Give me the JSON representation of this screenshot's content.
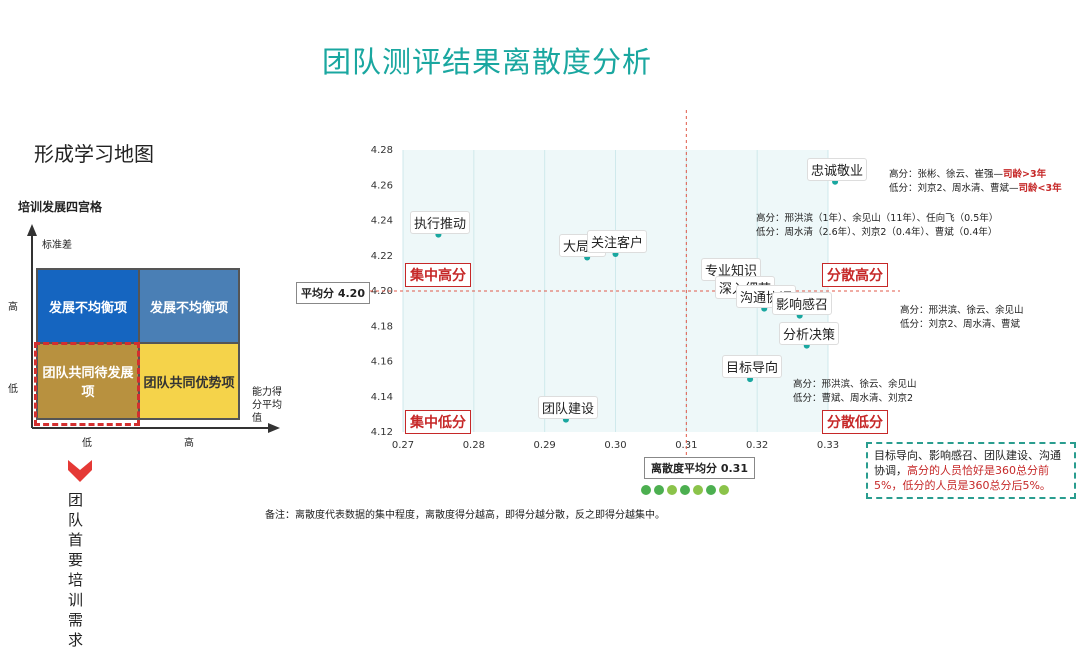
{
  "page": {
    "title": "团队测评结果离散度分析",
    "subtitle": "形成学习地图",
    "grid_title": "培训发展四宫格",
    "footnote": "备注：离散度代表数据的集中程度，离散度得分越高，即得分越分散，反之即得分越集中。",
    "need_text": "团队首要培训需求"
  },
  "quad_grid": {
    "y_axis_label": "标准差",
    "x_axis_label": "能力得分平均值",
    "y_high": "高",
    "y_low": "低",
    "x_low": "低",
    "x_high": "高",
    "cells": {
      "top_left": "发展不均衡项",
      "top_right": "发展不均衡项",
      "bottom_left": "团队共同待发展项",
      "bottom_right": "团队共同优势项"
    },
    "colors": {
      "top_left": "#1565c0",
      "top_right": "#4a7fb5",
      "bottom_left": "#b8913f",
      "bottom_right": "#f5d34a",
      "highlight": "#d32f2f"
    }
  },
  "chart_data": {
    "type": "scatter",
    "xlim": [
      0.27,
      0.33
    ],
    "ylim": [
      4.12,
      4.28
    ],
    "x_ticks": [
      "0.27",
      "0.28",
      "0.29",
      "0.30",
      "0.31",
      "0.32",
      "0.33"
    ],
    "y_ticks": [
      "4.12",
      "4.14",
      "4.16",
      "4.18",
      "4.20",
      "4.22",
      "4.24",
      "4.26",
      "4.28"
    ],
    "points": [
      {
        "label": "执行推动",
        "x": 0.275,
        "y": 4.232
      },
      {
        "label": "大局观",
        "x": 0.296,
        "y": 4.219
      },
      {
        "label": "关注客户",
        "x": 0.3,
        "y": 4.221
      },
      {
        "label": "专业知识",
        "x": 0.316,
        "y": 4.205
      },
      {
        "label": "忠诚敬业",
        "x": 0.331,
        "y": 4.262
      },
      {
        "label": "深入细节",
        "x": 0.318,
        "y": 4.195
      },
      {
        "label": "沟通协调",
        "x": 0.321,
        "y": 4.19
      },
      {
        "label": "影响感召",
        "x": 0.326,
        "y": 4.186
      },
      {
        "label": "分析决策",
        "x": 0.327,
        "y": 4.169
      },
      {
        "label": "目标导向",
        "x": 0.319,
        "y": 4.15
      },
      {
        "label": "团队建设",
        "x": 0.293,
        "y": 4.127
      }
    ],
    "mean_y_label": "平均分 4.20",
    "mean_x_label": "离散度平均分  0.31",
    "mean_x": 0.31,
    "mean_y": 4.2,
    "quadrants": {
      "top_left": "集中高分",
      "top_right": "分散高分",
      "bottom_left": "集中低分",
      "bottom_right": "分散低分"
    },
    "colors": {
      "point": "#1aa7a0",
      "mean_line": "#e05a4a",
      "quadrant": "#c62828"
    }
  },
  "annotations": {
    "a1": {
      "line1": "高分：张彬、徐云、崔强—",
      "line1_red": "司龄>3年",
      "line2": "低分：刘京2、周水清、曹斌—",
      "line2_red": "司龄<3年"
    },
    "a2": {
      "line1": "高分：邢洪滨（1年）、余见山（11年）、任向飞（0.5年）",
      "line2": "低分：周水清（2.6年）、刘京2（0.4年）、曹斌（0.4年）"
    },
    "a3": {
      "line1": "高分：邢洪滨、徐云、余见山",
      "line2": "低分：刘京2、周水清、曹斌"
    },
    "a4": {
      "line1": "高分：邢洪滨、徐云、余见山",
      "line2": "低分：曹斌、周水清、刘京2"
    }
  },
  "callout": {
    "part1": "目标导向、影响感召、团队建设、沟通协调，",
    "part2": "高分的人员恰好是360总分前5%，低分的人员是360总分后5%。"
  }
}
